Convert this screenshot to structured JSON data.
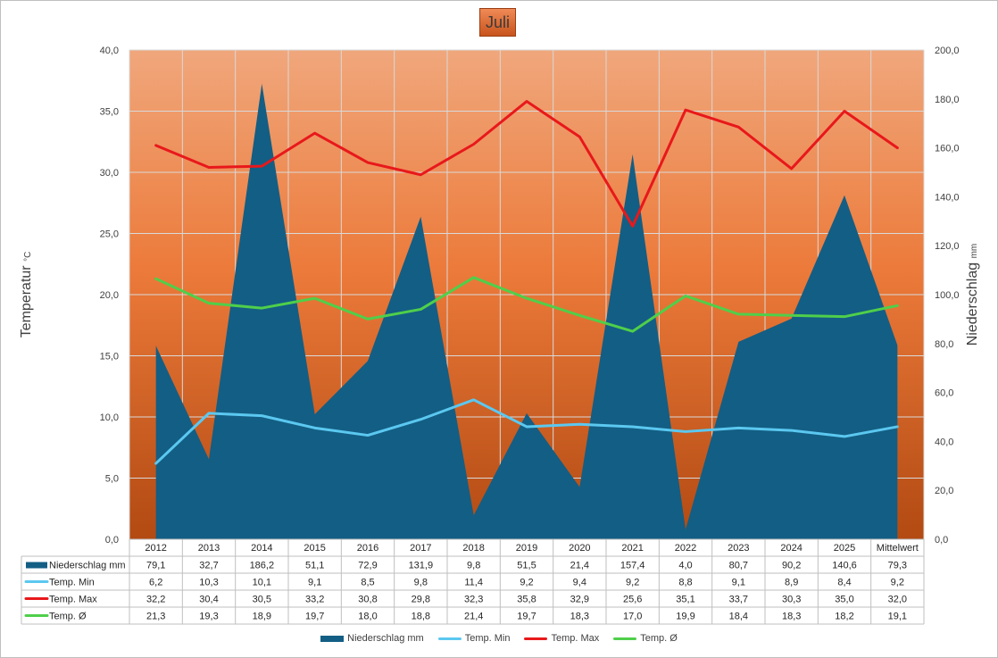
{
  "chart_data": {
    "type": "area+line",
    "title": "Juli",
    "ylabel_left": "Temperatur",
    "ylabel_left_unit": "°C",
    "ylabel_right": "Niederschlag",
    "ylabel_right_unit": "mm",
    "ylim_left": [
      0,
      40
    ],
    "ylim_right": [
      0,
      200
    ],
    "yticks_left": [
      "0,0",
      "5,0",
      "10,0",
      "15,0",
      "20,0",
      "25,0",
      "30,0",
      "35,0",
      "40,0"
    ],
    "yticks_right": [
      "0,0",
      "20,0",
      "40,0",
      "60,0",
      "80,0",
      "100,0",
      "120,0",
      "140,0",
      "160,0",
      "180,0",
      "200,0"
    ],
    "categories": [
      "2012",
      "2013",
      "2014",
      "2015",
      "2016",
      "2017",
      "2018",
      "2019",
      "2020",
      "2021",
      "2022",
      "2023",
      "2024",
      "2025",
      "Mittelwert"
    ],
    "grid": true,
    "legend_position": "bottom",
    "background": "gradient orange",
    "series": [
      {
        "name": "Niederschlag mm",
        "axis": "right",
        "kind": "area",
        "color": "#135e84",
        "values": [
          79.1,
          32.7,
          186.2,
          51.1,
          72.9,
          131.9,
          9.8,
          51.5,
          21.4,
          157.4,
          4.0,
          80.7,
          90.2,
          140.6,
          79.3
        ],
        "labels": [
          "79,1",
          "32,7",
          "186,2",
          "51,1",
          "72,9",
          "131,9",
          "9,8",
          "51,5",
          "21,4",
          "157,4",
          "4,0",
          "80,7",
          "90,2",
          "140,6",
          "79,3"
        ]
      },
      {
        "name": "Temp. Min",
        "axis": "left",
        "kind": "line",
        "color": "#5bc8f0",
        "values": [
          6.2,
          10.3,
          10.1,
          9.1,
          8.5,
          9.8,
          11.4,
          9.2,
          9.4,
          9.2,
          8.8,
          9.1,
          8.9,
          8.4,
          9.2
        ],
        "labels": [
          "6,2",
          "10,3",
          "10,1",
          "9,1",
          "8,5",
          "9,8",
          "11,4",
          "9,2",
          "9,4",
          "9,2",
          "8,8",
          "9,1",
          "8,9",
          "8,4",
          "9,2"
        ]
      },
      {
        "name": "Temp. Max",
        "axis": "left",
        "kind": "line",
        "color": "#e8181b",
        "values": [
          32.2,
          30.4,
          30.5,
          33.2,
          30.8,
          29.8,
          32.3,
          35.8,
          32.9,
          25.6,
          35.1,
          33.7,
          30.3,
          35.0,
          32.0
        ],
        "labels": [
          "32,2",
          "30,4",
          "30,5",
          "33,2",
          "30,8",
          "29,8",
          "32,3",
          "35,8",
          "32,9",
          "25,6",
          "35,1",
          "33,7",
          "30,3",
          "35,0",
          "32,0"
        ]
      },
      {
        "name": "Temp. Ø",
        "axis": "left",
        "kind": "line",
        "color": "#4fcf4a",
        "values": [
          21.3,
          19.3,
          18.9,
          19.7,
          18.0,
          18.8,
          21.4,
          19.7,
          18.3,
          17.0,
          19.9,
          18.4,
          18.3,
          18.2,
          19.1
        ],
        "labels": [
          "21,3",
          "19,3",
          "18,9",
          "19,7",
          "18,0",
          "18,8",
          "21,4",
          "19,7",
          "18,3",
          "17,0",
          "19,9",
          "18,4",
          "18,3",
          "18,2",
          "19,1"
        ]
      }
    ]
  }
}
